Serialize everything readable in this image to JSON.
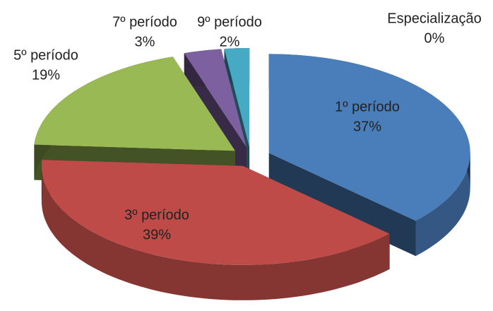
{
  "chart_data": {
    "type": "pie",
    "categories": [
      "1º período",
      "3º período",
      "5º período",
      "7º período",
      "9º período",
      "Especialização"
    ],
    "values": [
      37,
      39,
      19,
      3,
      2,
      0
    ],
    "value_labels": [
      "37%",
      "39%",
      "19%",
      "3%",
      "2%",
      "0%"
    ],
    "colors": [
      "#4a7ebb",
      "#be4b48",
      "#98b954",
      "#7d60a0",
      "#46aac5",
      "#f79646"
    ]
  }
}
